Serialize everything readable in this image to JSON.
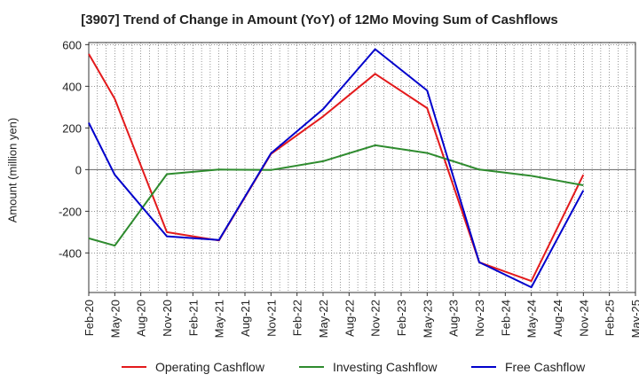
{
  "chart_data": {
    "type": "line",
    "title": "[3907]  Trend of Change in Amount (YoY) of 12Mo Moving Sum of Cashflows",
    "xlabel": "",
    "ylabel": "Amount (million yen)",
    "ylim": [
      -590,
      610
    ],
    "yticks": [
      -400,
      -200,
      0,
      200,
      400,
      600
    ],
    "grid": true,
    "legend_position": "bottom",
    "categories": [
      "Feb-20",
      "May-20",
      "Aug-20",
      "Nov-20",
      "Feb-21",
      "May-21",
      "Aug-21",
      "Nov-21",
      "Feb-22",
      "May-22",
      "Aug-22",
      "Nov-22",
      "Feb-23",
      "May-23",
      "Aug-23",
      "Nov-23",
      "Feb-24",
      "May-24",
      "Aug-24",
      "Nov-24",
      "Feb-25",
      "May-25"
    ],
    "series": [
      {
        "name": "Operating Cashflow",
        "color": "#e31a1c",
        "values": [
          555,
          340,
          null,
          -300,
          null,
          -340,
          null,
          75,
          null,
          255,
          null,
          460,
          null,
          295,
          null,
          -445,
          null,
          -535,
          null,
          -25,
          null,
          null
        ]
      },
      {
        "name": "Investing Cashflow",
        "color": "#2e8b2e",
        "values": [
          -330,
          -365,
          null,
          -22,
          null,
          0,
          null,
          -2,
          null,
          40,
          null,
          117,
          null,
          80,
          null,
          0,
          null,
          -30,
          null,
          -75,
          null,
          null
        ]
      },
      {
        "name": "Free Cashflow",
        "color": "#0000cc",
        "values": [
          225,
          -25,
          null,
          -320,
          null,
          -338,
          null,
          78,
          null,
          290,
          null,
          578,
          null,
          380,
          null,
          -445,
          null,
          -565,
          null,
          -100,
          null,
          null
        ]
      }
    ]
  }
}
